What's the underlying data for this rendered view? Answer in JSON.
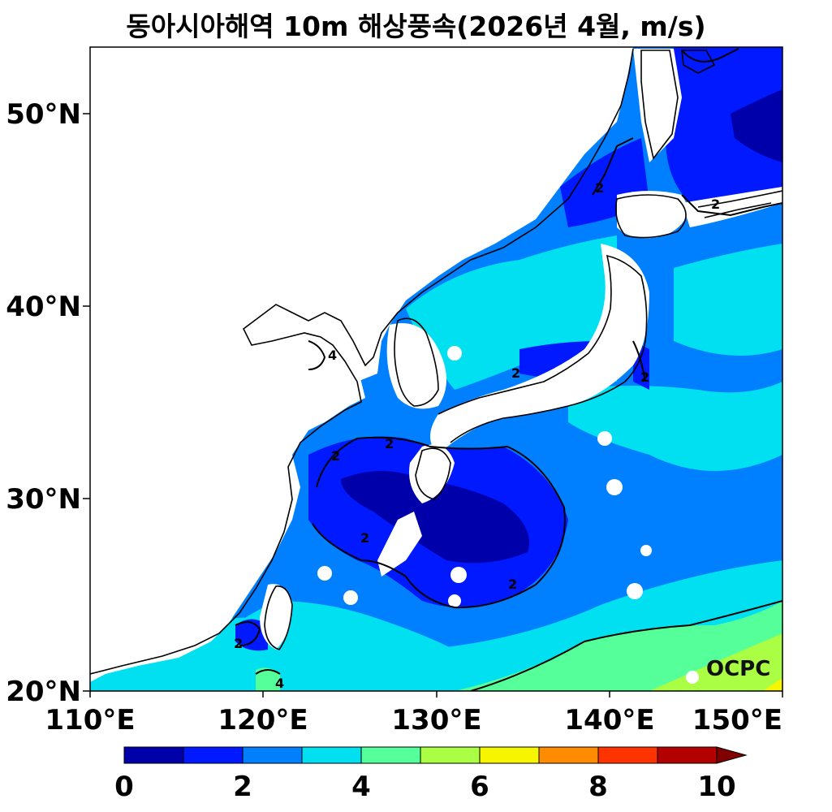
{
  "title": "동아시아해역 10m 해상풍속(2026년 4월, m/s)",
  "y_ticks": [
    "50°N",
    "40°N",
    "30°N",
    "20°N"
  ],
  "x_ticks": [
    "110°E",
    "120°E",
    "130°E",
    "140°E",
    "150°E"
  ],
  "colorbar": {
    "colors": [
      "#0000aa",
      "#0019ff",
      "#0080ff",
      "#00e0f0",
      "#55ff99",
      "#aaff44",
      "#f8f500",
      "#ff8c00",
      "#ff3300",
      "#b30000",
      "#800000"
    ],
    "labels": [
      "0",
      "2",
      "4",
      "6",
      "8",
      "10"
    ]
  },
  "contour_labels": [
    "2",
    "2",
    "2",
    "2",
    "2",
    "2",
    "2",
    "2",
    "2",
    "4",
    "4"
  ],
  "watermark": "OCPC"
}
